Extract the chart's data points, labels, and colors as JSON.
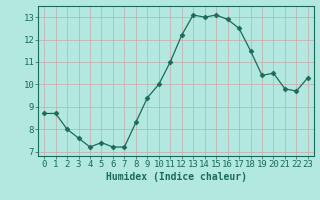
{
  "x": [
    0,
    1,
    2,
    3,
    4,
    5,
    6,
    7,
    8,
    9,
    10,
    11,
    12,
    13,
    14,
    15,
    16,
    17,
    18,
    19,
    20,
    21,
    22,
    23
  ],
  "y": [
    8.7,
    8.7,
    8.0,
    7.6,
    7.2,
    7.4,
    7.2,
    7.2,
    8.3,
    9.4,
    10.0,
    11.0,
    12.2,
    13.1,
    13.0,
    13.1,
    12.9,
    12.5,
    11.5,
    10.4,
    10.5,
    9.8,
    9.7,
    10.3
  ],
  "line_color": "#1a6b5a",
  "marker": "D",
  "marker_size": 2.5,
  "bg_color": "#b2e8e0",
  "grid_color": "#d0eeea",
  "xlabel": "Humidex (Indice chaleur)",
  "ylabel": "",
  "xlim": [
    -0.5,
    23.5
  ],
  "ylim": [
    6.8,
    13.5
  ],
  "yticks": [
    7,
    8,
    9,
    10,
    11,
    12,
    13
  ],
  "xtick_labels": [
    "0",
    "1",
    "2",
    "3",
    "4",
    "5",
    "6",
    "7",
    "8",
    "9",
    "10",
    "11",
    "12",
    "13",
    "14",
    "15",
    "16",
    "17",
    "18",
    "19",
    "20",
    "21",
    "22",
    "23"
  ],
  "tick_color": "#1a6b5a",
  "axis_color": "#1a6b5a",
  "label_fontsize": 7,
  "tick_fontsize": 6.5
}
